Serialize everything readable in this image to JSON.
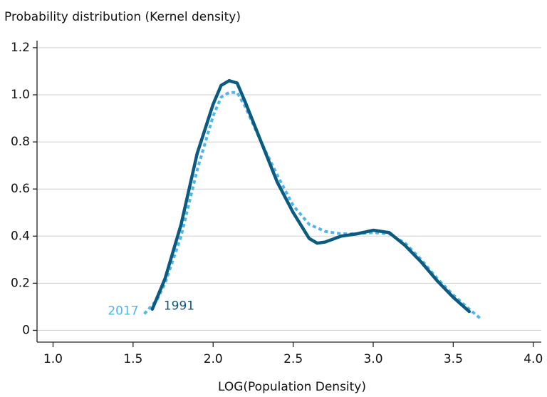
{
  "chart_data": {
    "type": "line",
    "y_axis_label": "Probability distribution (Kernel density)",
    "x_axis_label": "LOG(Population Density)",
    "xlim": [
      0.9,
      4.05
    ],
    "ylim": [
      -0.05,
      1.23
    ],
    "xticks": [
      {
        "value": 1,
        "label": "1.0"
      },
      1.5,
      {
        "value": 2,
        "label": "2.0"
      },
      2.5,
      {
        "value": 3,
        "label": "3.0"
      },
      3.5,
      {
        "value": 4,
        "label": "4.0"
      }
    ],
    "yticks": [
      0,
      0.2,
      0.4,
      0.6,
      0.8,
      {
        "value": 1,
        "label": "1.0"
      },
      1.2
    ],
    "grid": true,
    "series": [
      {
        "name": "2017",
        "color": "#4fb6e8",
        "dash": true,
        "x": [
          1.57,
          1.65,
          1.7,
          1.8,
          1.9,
          2.0,
          2.05,
          2.1,
          2.15,
          2.2,
          2.3,
          2.4,
          2.5,
          2.6,
          2.7,
          2.8,
          2.9,
          3.0,
          3.1,
          3.2,
          3.3,
          3.4,
          3.5,
          3.6,
          3.67
        ],
        "values": [
          0.07,
          0.13,
          0.2,
          0.4,
          0.68,
          0.91,
          0.99,
          1.01,
          1.01,
          0.95,
          0.8,
          0.66,
          0.53,
          0.45,
          0.42,
          0.41,
          0.41,
          0.415,
          0.41,
          0.37,
          0.3,
          0.22,
          0.15,
          0.09,
          0.05
        ]
      },
      {
        "name": "1991",
        "color": "#0b5a82",
        "dash": false,
        "x": [
          1.62,
          1.7,
          1.8,
          1.9,
          2.0,
          2.05,
          2.1,
          2.15,
          2.2,
          2.3,
          2.4,
          2.5,
          2.6,
          2.65,
          2.7,
          2.8,
          2.9,
          3.0,
          3.1,
          3.2,
          3.3,
          3.4,
          3.5,
          3.6
        ],
        "values": [
          0.09,
          0.22,
          0.45,
          0.75,
          0.96,
          1.04,
          1.06,
          1.05,
          0.97,
          0.8,
          0.63,
          0.5,
          0.39,
          0.37,
          0.375,
          0.4,
          0.41,
          0.425,
          0.415,
          0.36,
          0.29,
          0.21,
          0.14,
          0.08
        ]
      }
    ]
  }
}
